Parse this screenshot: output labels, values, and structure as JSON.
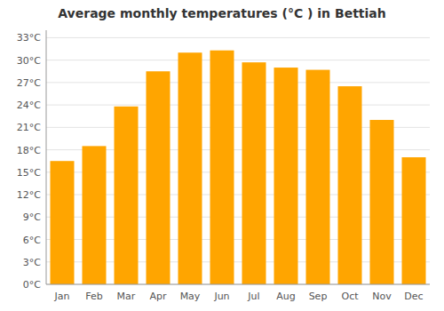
{
  "chart_data": {
    "type": "bar",
    "title": "Average monthly temperatures (°C ) in Bettiah",
    "categories": [
      "Jan",
      "Feb",
      "Mar",
      "Apr",
      "May",
      "Jun",
      "Jul",
      "Aug",
      "Sep",
      "Oct",
      "Nov",
      "Dec"
    ],
    "values": [
      16.5,
      18.5,
      23.8,
      28.5,
      31.0,
      31.3,
      29.7,
      29.0,
      28.7,
      26.5,
      22.0,
      17.0
    ],
    "color": "#FFA500",
    "ylim": [
      0,
      34
    ],
    "yticks": [
      {
        "value": 0,
        "label": "0°C"
      },
      {
        "value": 3,
        "label": "3°C"
      },
      {
        "value": 6,
        "label": "6°C"
      },
      {
        "value": 9,
        "label": "9°C"
      },
      {
        "value": 12,
        "label": "12°C"
      },
      {
        "value": 15,
        "label": "15°C"
      },
      {
        "value": 18,
        "label": "18°C"
      },
      {
        "value": 21,
        "label": "21°C"
      },
      {
        "value": 24,
        "label": "24°C"
      },
      {
        "value": 27,
        "label": "27°C"
      },
      {
        "value": 30,
        "label": "30°C"
      },
      {
        "value": 33,
        "label": "33°C"
      }
    ],
    "grid": true
  }
}
